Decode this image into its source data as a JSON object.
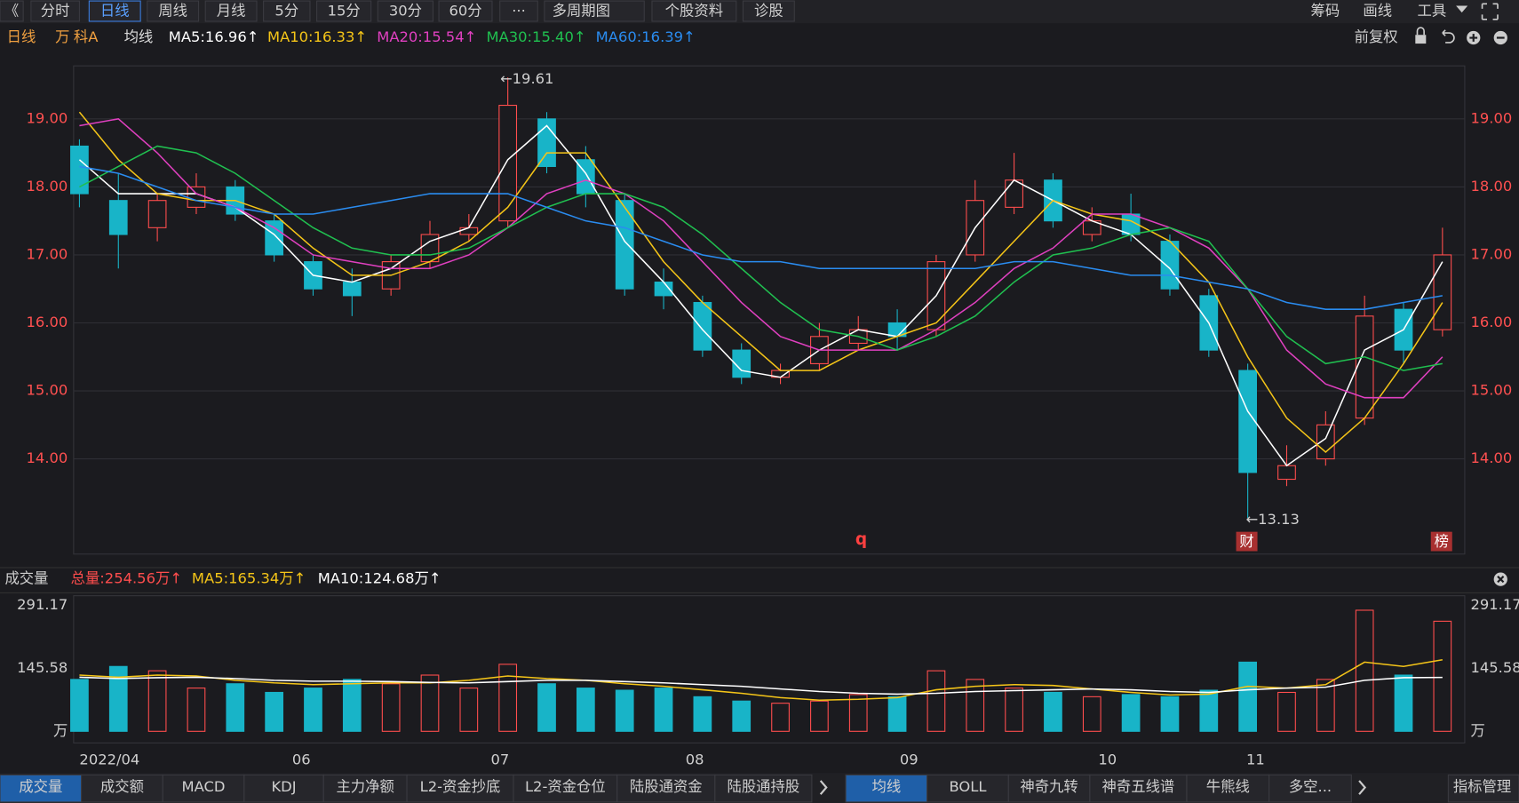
{
  "toolbar": {
    "left": [
      "《",
      "分时",
      "日线",
      "周线",
      "月线",
      "5分",
      "15分",
      "30分",
      "60分",
      "···",
      "多周期图",
      "个股资料",
      "诊股"
    ],
    "right": [
      "筹码",
      "画线",
      "工具"
    ]
  },
  "indicator_bar": {
    "labels": [
      {
        "text": "日线",
        "color": "#f0a040"
      },
      {
        "text": "万",
        "color": "#f0a040"
      },
      {
        "text": "科A",
        "color": "#f0a040"
      },
      {
        "text": "均线",
        "color": "#dddddd"
      }
    ],
    "ma": [
      {
        "text": "MA5:16.96↑",
        "color": "#ffffff"
      },
      {
        "text": "MA10:16.33↑",
        "color": "#f5c518"
      },
      {
        "text": "MA20:15.54↑",
        "color": "#e040c0"
      },
      {
        "text": "MA30:15.40↑",
        "color": "#20c050"
      },
      {
        "text": "MA60:16.39↑",
        "color": "#2a8cf0"
      }
    ],
    "right": "前复权"
  },
  "volume_bar": {
    "title": "成交量",
    "labels": [
      {
        "text": "总量:254.56万↑",
        "color": "#ff4d4d"
      },
      {
        "text": "MA5:165.34万↑",
        "color": "#f5c518"
      },
      {
        "text": "MA10:124.68万↑",
        "color": "#ffffff"
      }
    ]
  },
  "markers": [
    "q",
    "财",
    "榜"
  ],
  "chart_data": [
    {
      "type": "candlestick",
      "up_color": "#ff4d4d",
      "down_color": "#18b4c8",
      "grid": true,
      "open": [
        18.6,
        17.8,
        17.4,
        17.7,
        18.0,
        17.5,
        16.9,
        16.6,
        16.5,
        16.9,
        17.3,
        17.5,
        19.0,
        18.4,
        17.8,
        16.6,
        16.3,
        15.6,
        15.2,
        15.4,
        15.7,
        16.0,
        15.9,
        17.0,
        17.7,
        18.1,
        17.3,
        17.6,
        17.2,
        16.4,
        15.3,
        13.7,
        14.0,
        14.6,
        16.2,
        15.9
      ],
      "high": [
        18.7,
        18.2,
        17.9,
        18.2,
        18.1,
        17.6,
        17.0,
        16.8,
        17.0,
        17.5,
        17.6,
        19.61,
        19.1,
        18.6,
        17.9,
        16.8,
        16.4,
        15.7,
        15.4,
        16.0,
        16.1,
        16.2,
        17.0,
        18.1,
        18.5,
        18.2,
        17.7,
        17.9,
        17.3,
        16.5,
        15.4,
        14.2,
        14.7,
        16.4,
        16.3,
        17.4
      ],
      "low": [
        17.7,
        16.8,
        17.2,
        17.6,
        17.5,
        16.9,
        16.4,
        16.1,
        16.4,
        16.8,
        17.2,
        17.4,
        18.2,
        17.7,
        16.4,
        16.2,
        15.5,
        15.1,
        15.1,
        15.3,
        15.6,
        15.6,
        15.8,
        16.9,
        17.6,
        17.4,
        17.2,
        17.2,
        16.4,
        15.5,
        13.13,
        13.6,
        13.9,
        14.5,
        15.4,
        15.8
      ],
      "close": [
        17.9,
        17.3,
        17.8,
        18.0,
        17.6,
        17.0,
        16.5,
        16.4,
        16.9,
        17.3,
        17.4,
        19.2,
        18.3,
        17.9,
        16.5,
        16.4,
        15.6,
        15.2,
        15.3,
        15.8,
        15.9,
        15.8,
        16.9,
        17.8,
        18.1,
        17.5,
        17.5,
        17.3,
        16.5,
        15.6,
        13.8,
        13.9,
        14.5,
        16.1,
        15.6,
        17.0
      ],
      "series": [
        {
          "name": "MA5",
          "color": "#ffffff",
          "values": [
            18.4,
            17.9,
            17.9,
            17.9,
            17.7,
            17.3,
            16.7,
            16.6,
            16.8,
            17.2,
            17.4,
            18.4,
            18.9,
            18.2,
            17.2,
            16.6,
            15.9,
            15.3,
            15.2,
            15.6,
            15.9,
            15.8,
            16.4,
            17.4,
            18.1,
            17.8,
            17.5,
            17.3,
            16.8,
            16.0,
            14.7,
            13.9,
            14.3,
            15.6,
            15.9,
            16.9
          ]
        },
        {
          "name": "MA10",
          "color": "#f5c518",
          "values": [
            19.1,
            18.4,
            17.9,
            17.8,
            17.8,
            17.6,
            17.1,
            16.7,
            16.7,
            16.9,
            17.2,
            17.7,
            18.5,
            18.5,
            17.7,
            16.9,
            16.3,
            15.8,
            15.3,
            15.3,
            15.6,
            15.8,
            16.0,
            16.6,
            17.2,
            17.8,
            17.6,
            17.5,
            17.2,
            16.6,
            15.5,
            14.6,
            14.1,
            14.6,
            15.4,
            16.3
          ]
        },
        {
          "name": "MA20",
          "color": "#e040c0",
          "values": [
            18.9,
            19.0,
            18.5,
            17.9,
            17.7,
            17.4,
            17.0,
            16.9,
            16.8,
            16.8,
            17.0,
            17.4,
            17.9,
            18.1,
            17.9,
            17.5,
            16.9,
            16.3,
            15.8,
            15.6,
            15.6,
            15.6,
            15.9,
            16.3,
            16.8,
            17.1,
            17.6,
            17.6,
            17.4,
            17.1,
            16.5,
            15.6,
            15.1,
            14.9,
            14.9,
            15.5
          ]
        },
        {
          "name": "MA30",
          "color": "#20c050",
          "values": [
            18.0,
            18.3,
            18.6,
            18.5,
            18.2,
            17.8,
            17.4,
            17.1,
            17.0,
            17.0,
            17.1,
            17.4,
            17.7,
            17.9,
            17.9,
            17.7,
            17.3,
            16.8,
            16.3,
            15.9,
            15.8,
            15.6,
            15.8,
            16.1,
            16.6,
            17.0,
            17.1,
            17.3,
            17.4,
            17.2,
            16.5,
            15.8,
            15.4,
            15.5,
            15.3,
            15.4
          ]
        },
        {
          "name": "MA60",
          "color": "#2a8cf0",
          "values": [
            18.3,
            18.2,
            18.0,
            17.8,
            17.7,
            17.6,
            17.6,
            17.7,
            17.8,
            17.9,
            17.9,
            17.9,
            17.7,
            17.5,
            17.4,
            17.2,
            17.0,
            16.9,
            16.9,
            16.8,
            16.8,
            16.8,
            16.8,
            16.8,
            16.9,
            16.9,
            16.8,
            16.7,
            16.7,
            16.6,
            16.5,
            16.3,
            16.2,
            16.2,
            16.3,
            16.4
          ]
        }
      ],
      "annotations": [
        "←19.61",
        "←13.13"
      ],
      "ylim": [
        12.6,
        19.78
      ],
      "yticks": [
        {
          "value": 14,
          "label": "14.00"
        },
        {
          "value": 15,
          "label": "15.00"
        },
        {
          "value": 16,
          "label": "16.00"
        },
        {
          "value": 17,
          "label": "17.00"
        },
        {
          "value": 18,
          "label": "18.00"
        },
        {
          "value": 19,
          "label": "19.00"
        }
      ],
      "xticks": [
        {
          "value": 0,
          "label": "2022/04"
        },
        {
          "value": 5.7,
          "label": "06"
        },
        {
          "value": 10.8,
          "label": "07"
        },
        {
          "value": 15.8,
          "label": "08"
        },
        {
          "value": 21.3,
          "label": "09"
        },
        {
          "value": 26.4,
          "label": "10"
        },
        {
          "value": 30.2,
          "label": "11"
        }
      ]
    },
    {
      "type": "bar",
      "grid": false,
      "values": [
        120,
        150,
        140,
        100,
        110,
        90,
        100,
        120,
        110,
        130,
        100,
        155,
        110,
        100,
        95,
        100,
        80,
        70,
        65,
        70,
        85,
        80,
        140,
        120,
        100,
        90,
        80,
        85,
        80,
        95,
        160,
        90,
        120,
        280,
        130,
        254.56
      ],
      "series": [
        {
          "name": "MA5",
          "color": "#f5c518",
          "values": [
            130,
            125,
            130,
            128,
            118,
            112,
            108,
            110,
            112,
            112,
            118,
            128,
            122,
            118,
            110,
            104,
            96,
            88,
            78,
            72,
            74,
            78,
            96,
            104,
            108,
            106,
            98,
            90,
            84,
            86,
            104,
            100,
            108,
            160,
            150,
            165.34
          ]
        },
        {
          "name": "MA10",
          "color": "#ffffff",
          "values": [
            125,
            122,
            124,
            125,
            122,
            118,
            116,
            116,
            115,
            113,
            112,
            115,
            118,
            118,
            115,
            112,
            108,
            104,
            98,
            92,
            88,
            86,
            88,
            92,
            94,
            96,
            98,
            96,
            92,
            90,
            96,
            100,
            102,
            118,
            124,
            124.68
          ]
        }
      ],
      "ylim": [
        0,
        291.17
      ],
      "yticks": [
        {
          "value": 0,
          "label": "万"
        },
        145.58,
        291.17
      ]
    }
  ],
  "bottom_tabs": {
    "left": [
      "成交量",
      "成交额",
      "MACD",
      "KDJ",
      "主力净额",
      "L2-资金抄底",
      "L2-资金仓位",
      "陆股通资金",
      "陆股通持股"
    ],
    "right": [
      "均线",
      "BOLL",
      "神奇九转",
      "神奇五线谱",
      "牛熊线",
      "多空..."
    ],
    "manage": "指标管理"
  }
}
